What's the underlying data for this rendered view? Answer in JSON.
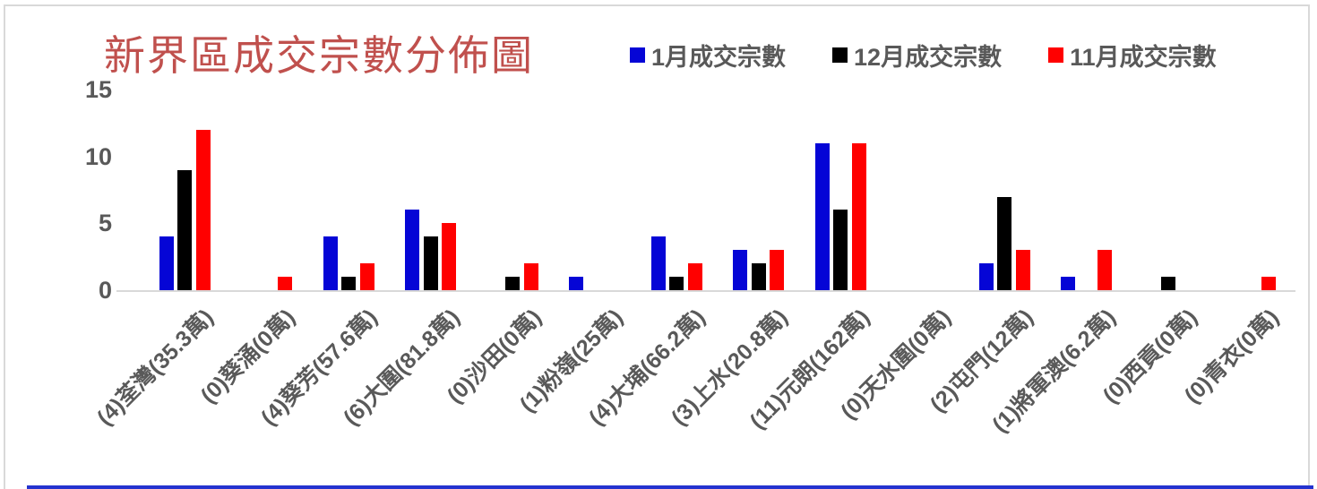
{
  "title": {
    "text": "新界區成交宗數分佈圖",
    "color": "#C0504D"
  },
  "legend": [
    {
      "label": "1月成交宗數",
      "color": "#0505D6"
    },
    {
      "label": "12月成交宗數",
      "color": "#000000"
    },
    {
      "label": "11月成交宗數",
      "color": "#FF0000"
    }
  ],
  "y_axis": {
    "ticks": [
      15,
      10,
      5,
      0
    ],
    "color": "#595959"
  },
  "frame": {
    "border_color": "#D9D9D9",
    "axis_line_color": "#D9D9D9",
    "bottom_strip_color": "#2433CF"
  },
  "chart_data": {
    "type": "bar",
    "title": "新界區成交宗數分佈圖",
    "xlabel": "",
    "ylabel": "",
    "ylim": [
      0,
      15
    ],
    "grid": false,
    "legend_position": "top-right",
    "x_tick_rotation_deg": 45,
    "categories": [
      "(4)荃灣(35.3萬)",
      "(0)葵涌(0萬)",
      "(4)葵芳(57.6萬)",
      "(6)大圍(81.8萬)",
      "(0)沙田(0萬)",
      "(1)粉嶺(25萬)",
      "(4)大埔(66.2萬)",
      "(3)上水(20.8萬)",
      "(11)元朗(162萬)",
      "(0)天水圍(0萬)",
      "(2)屯門(12萬)",
      "(1)將軍澳(6.2萬)",
      "(0)西貢(0萬)",
      "(0)青衣(0萬)"
    ],
    "series": [
      {
        "name": "1月成交宗數",
        "color": "#0505D6",
        "values": [
          4,
          0,
          4,
          6,
          0,
          1,
          4,
          3,
          11,
          0,
          2,
          1,
          0,
          0
        ]
      },
      {
        "name": "12月成交宗數",
        "color": "#000000",
        "values": [
          9,
          0,
          1,
          4,
          1,
          0,
          1,
          2,
          6,
          0,
          7,
          0,
          1,
          0
        ]
      },
      {
        "name": "11月成交宗數",
        "color": "#FF0000",
        "values": [
          12,
          1,
          2,
          5,
          2,
          0,
          2,
          3,
          11,
          0,
          3,
          3,
          0,
          1
        ]
      }
    ]
  }
}
